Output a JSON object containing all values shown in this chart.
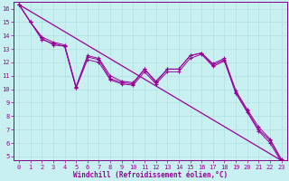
{
  "xlabel": "Windchill (Refroidissement éolien,°C)",
  "bg_color": "#c8f0f0",
  "line_color": "#990099",
  "grid_color": "#aadddd",
  "spine_color": "#880088",
  "xlim": [
    -0.5,
    23.5
  ],
  "ylim": [
    4.7,
    16.5
  ],
  "xticks": [
    0,
    1,
    2,
    3,
    4,
    5,
    6,
    7,
    8,
    9,
    10,
    11,
    12,
    13,
    14,
    15,
    16,
    17,
    18,
    19,
    20,
    21,
    22,
    23
  ],
  "yticks": [
    5,
    6,
    7,
    8,
    9,
    10,
    11,
    12,
    13,
    14,
    15,
    16
  ],
  "series": {
    "line1": {
      "x": [
        0,
        1,
        2,
        3,
        4,
        5,
        6,
        7,
        8,
        9,
        10,
        11,
        12,
        13,
        14,
        15,
        16,
        17,
        18,
        19,
        20,
        21,
        22,
        23
      ],
      "y": [
        16.3,
        15.0,
        13.8,
        13.3,
        13.2,
        10.1,
        12.4,
        12.2,
        10.8,
        10.5,
        10.4,
        11.5,
        10.5,
        11.5,
        11.5,
        12.5,
        12.7,
        11.8,
        12.2,
        9.8,
        8.4,
        7.0,
        6.2,
        4.7
      ]
    },
    "line2": {
      "x": [
        0,
        1,
        2,
        3,
        4,
        5,
        6,
        7,
        8,
        9,
        10,
        11,
        12,
        13,
        14,
        15,
        16,
        17,
        18,
        19,
        20,
        21,
        22,
        23
      ],
      "y": [
        16.3,
        15.0,
        13.9,
        13.5,
        13.3,
        10.2,
        12.5,
        12.3,
        11.0,
        10.6,
        10.5,
        11.5,
        10.6,
        11.5,
        11.5,
        12.5,
        12.7,
        11.9,
        12.3,
        9.9,
        8.5,
        7.2,
        6.3,
        4.8
      ]
    },
    "line3": {
      "x": [
        0,
        1,
        2,
        3,
        4,
        5,
        6,
        7,
        8,
        9,
        10,
        11,
        12,
        13,
        14,
        15,
        16,
        17,
        18,
        19,
        20,
        21,
        22,
        23
      ],
      "y": [
        16.3,
        15.0,
        13.7,
        13.4,
        13.2,
        10.1,
        12.2,
        12.0,
        10.7,
        10.4,
        10.3,
        11.3,
        10.4,
        11.3,
        11.3,
        12.3,
        12.6,
        11.7,
        12.1,
        9.7,
        8.3,
        6.9,
        6.0,
        4.6
      ]
    },
    "trend": {
      "x": [
        0,
        23
      ],
      "y": [
        16.3,
        4.7
      ]
    }
  }
}
